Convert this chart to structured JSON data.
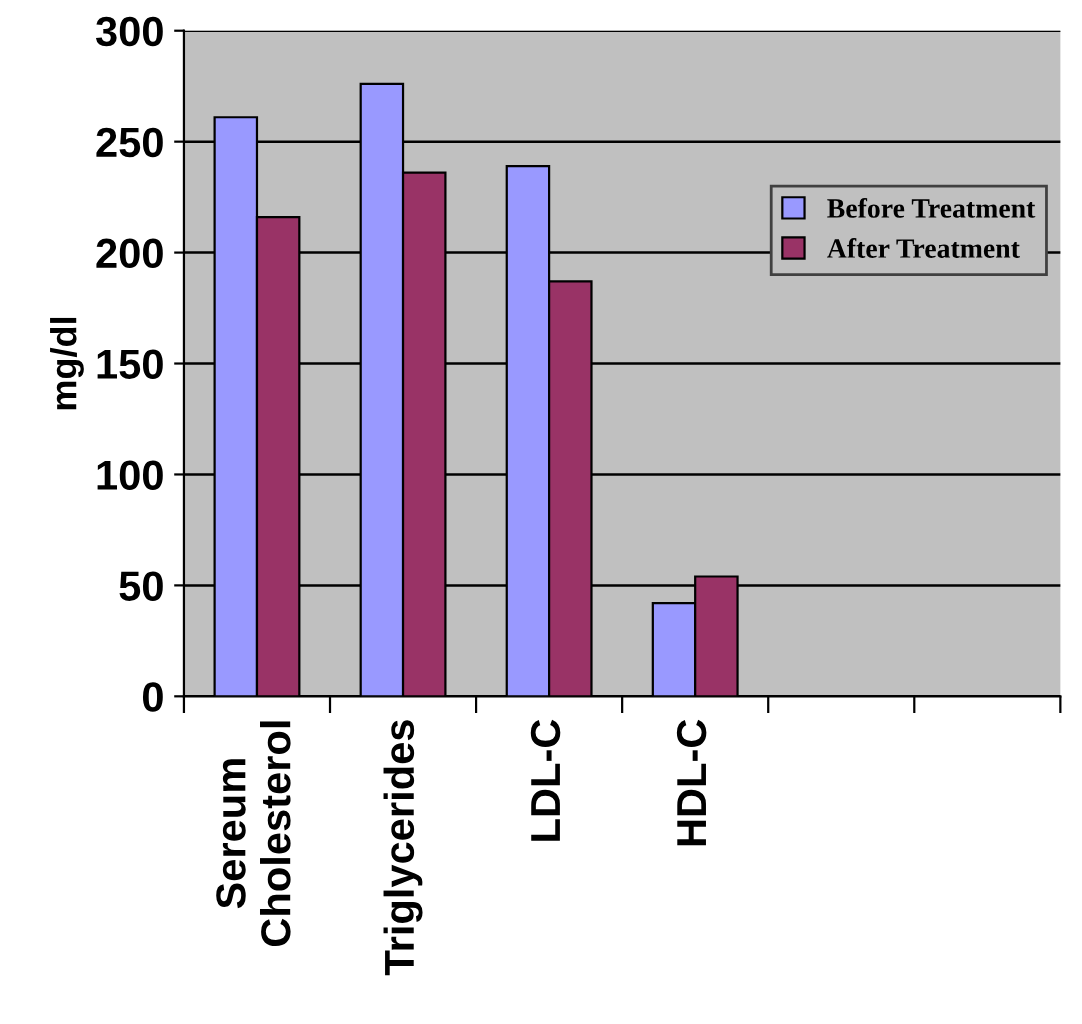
{
  "chart_data": {
    "type": "bar",
    "ylabel": "mg/dl",
    "categories": [
      "Sereum\nCholesterol",
      "Triglycerides",
      "LDL-C",
      "HDL-C",
      null,
      null
    ],
    "series": [
      {
        "name": "Before Treatment",
        "color": "#9999ff",
        "values": [
          261,
          276,
          239,
          42,
          null,
          null
        ]
      },
      {
        "name": "After Treatment",
        "color": "#993366",
        "values": [
          216,
          236,
          187,
          54,
          null,
          null
        ]
      }
    ],
    "ylim": [
      0,
      300
    ],
    "yticks": [
      0,
      50,
      100,
      150,
      200,
      250,
      300
    ],
    "grid": "y",
    "legend": "right"
  }
}
